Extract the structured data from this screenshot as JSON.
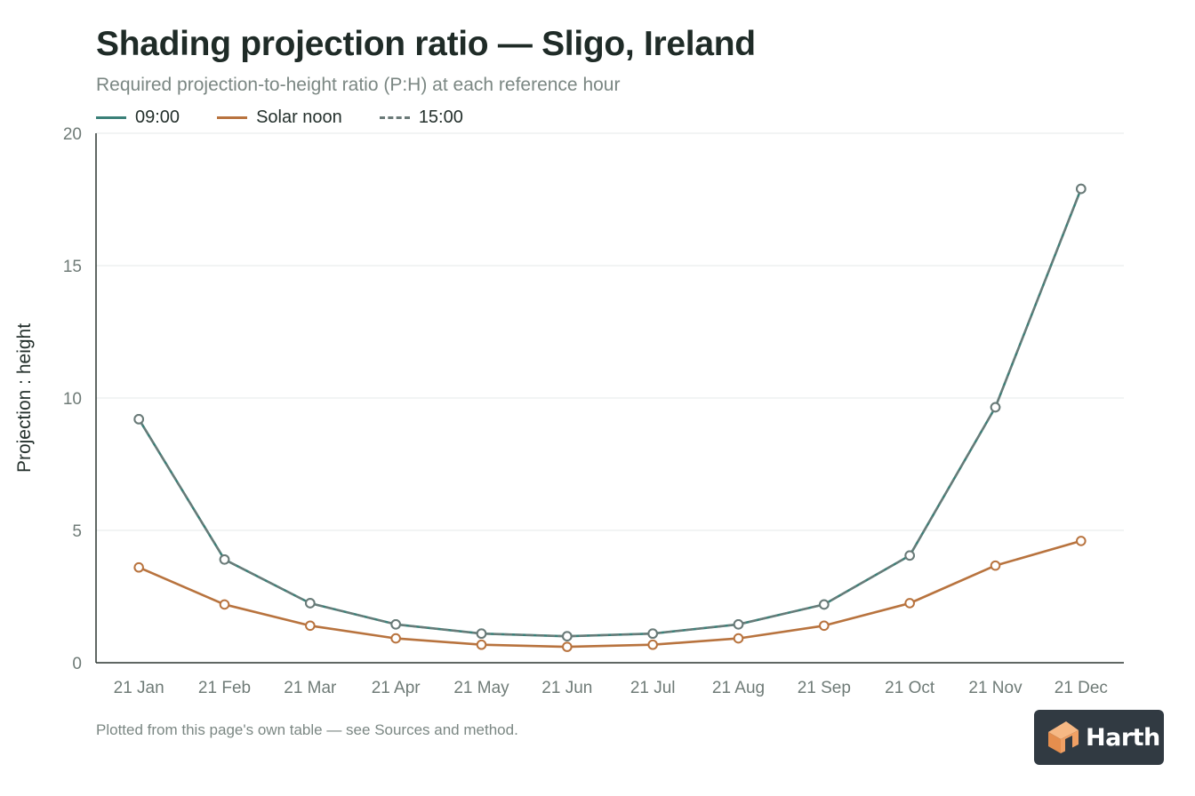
{
  "header": {
    "title": "Shading projection ratio — Sligo, Ireland",
    "subtitle": "Required projection-to-height ratio (P:H) at each reference hour"
  },
  "footer": {
    "note": "Plotted from this page's own table — see Sources and method."
  },
  "brand": {
    "name": "Harth",
    "logo_icon": "house-cube-icon",
    "logo_bg": "#313a42",
    "logo_accent": "#f0a064"
  },
  "chart_data": {
    "type": "line",
    "title": "Shading projection ratio — Sligo, Ireland",
    "subtitle": "Required projection-to-height ratio (P:H) at each reference hour",
    "xlabel": "",
    "ylabel": "Projection : height",
    "ylim": [
      0,
      20
    ],
    "yticks": [
      0,
      5,
      10,
      15,
      20
    ],
    "grid": true,
    "legend_position": "top-left",
    "categories": [
      "21 Jan",
      "21 Feb",
      "21 Mar",
      "21 Apr",
      "21 May",
      "21 Jun",
      "21 Jul",
      "21 Aug",
      "21 Sep",
      "21 Oct",
      "21 Nov",
      "21 Dec"
    ],
    "series": [
      {
        "name": "09:00",
        "color": "#3a8078",
        "dash": "solid",
        "values": [
          9.2,
          3.9,
          2.25,
          1.45,
          1.1,
          1.0,
          1.1,
          1.45,
          2.2,
          4.05,
          9.65,
          17.9
        ]
      },
      {
        "name": "Solar noon",
        "color": "#b8733e",
        "dash": "solid",
        "values": [
          3.6,
          2.2,
          1.4,
          0.92,
          0.68,
          0.6,
          0.68,
          0.92,
          1.4,
          2.25,
          3.67,
          4.6
        ]
      },
      {
        "name": "15:00",
        "color": "#6b7a78",
        "dash": "dashed",
        "values": [
          9.2,
          3.9,
          2.25,
          1.45,
          1.1,
          1.0,
          1.1,
          1.45,
          2.2,
          4.05,
          9.65,
          17.9
        ]
      }
    ]
  }
}
